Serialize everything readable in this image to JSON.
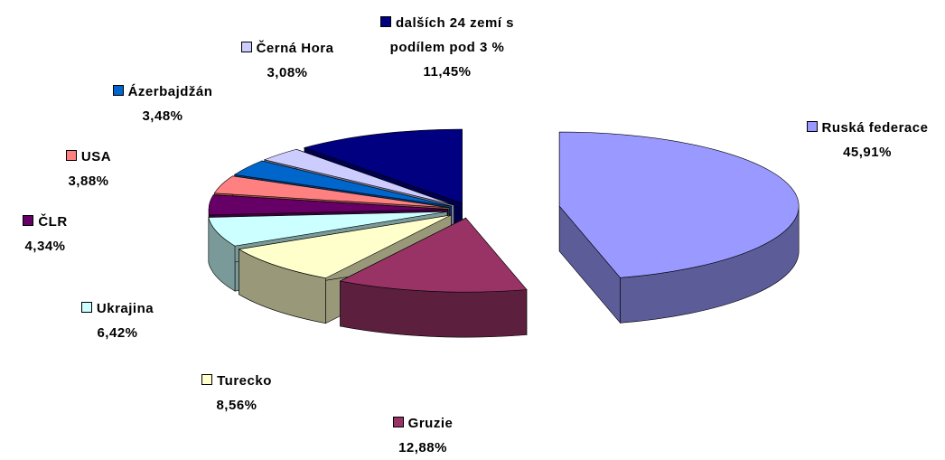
{
  "chart_data": {
    "type": "pie",
    "categories": [
      "Ruská federace",
      "Gruzie",
      "Turecko",
      "Ukrajina",
      "ČLR",
      "USA",
      "Ázerbajdžán",
      "Černá Hora",
      "dalších 24 zemí s podílem pod 3 %"
    ],
    "values": [
      45.91,
      12.88,
      8.56,
      6.42,
      4.34,
      3.88,
      3.48,
      3.08,
      11.45
    ],
    "value_labels": [
      "45,91%",
      "12,88%",
      "8,56%",
      "6,42%",
      "4,34%",
      "3,88%",
      "3,48%",
      "3,08%",
      "11,45%"
    ],
    "colors": [
      "#9999ff",
      "#993366",
      "#ffffcc",
      "#ccffff",
      "#660066",
      "#ff8080",
      "#0066cc",
      "#ccccff",
      "#000080"
    ]
  }
}
